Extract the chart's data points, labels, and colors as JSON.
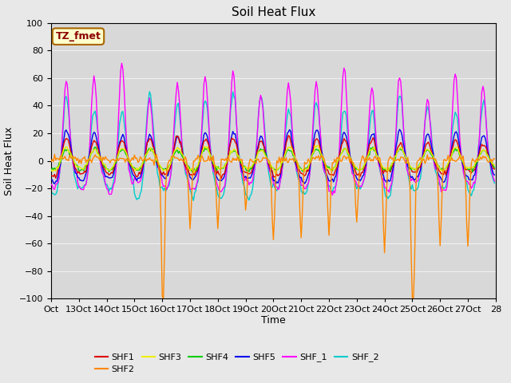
{
  "title": "Soil Heat Flux",
  "xlabel": "Time",
  "ylabel": "Soil Heat Flux",
  "ylim": [
    -100,
    100
  ],
  "background_color": "#e8e8e8",
  "plot_bg_color": "#d8d8d8",
  "grid_color": "#f0f0f0",
  "xtick_labels": [
    "Oct",
    "13Oct",
    "14Oct",
    "15Oct",
    "16Oct",
    "17Oct",
    "18Oct",
    "19Oct",
    "20Oct",
    "21Oct",
    "22Oct",
    "23Oct",
    "24Oct",
    "25Oct",
    "26Oct",
    "27Oct",
    "28"
  ],
  "series_colors": {
    "SHF1": "#dd0000",
    "SHF2": "#ff8800",
    "SHF3": "#eeee00",
    "SHF4": "#00cc00",
    "SHF5": "#0000ee",
    "SHF_1": "#ff00ff",
    "SHF_2": "#00cccc"
  },
  "annotation_text": "TZ_fmet",
  "annotation_bg": "#ffffcc",
  "annotation_border": "#aa6600",
  "n_days": 16,
  "hours_per_day": 24,
  "legend_labels_row1": [
    "SHF1",
    "SHF2",
    "SHF3",
    "SHF4",
    "SHF5",
    "SHF_1"
  ],
  "legend_labels_row2": [
    "SHF_2"
  ]
}
